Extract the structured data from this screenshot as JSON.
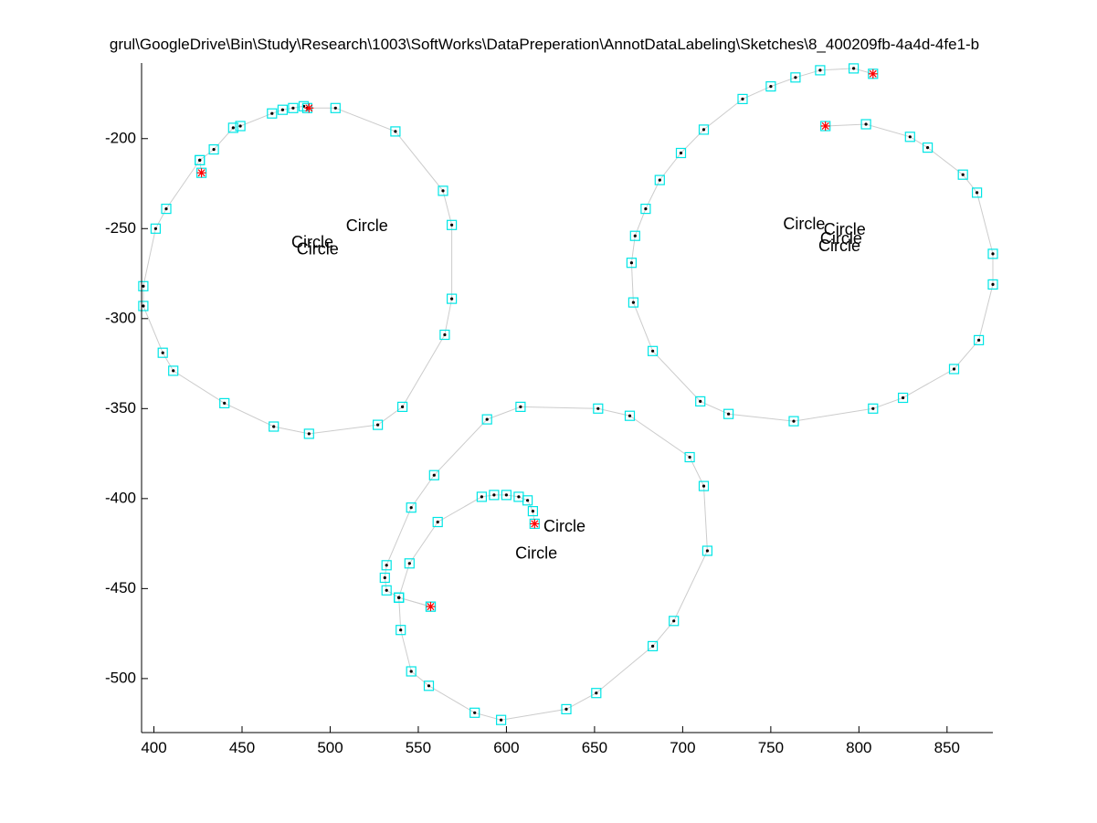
{
  "chart_data": {
    "type": "scatter",
    "title": "grul\\GoogleDrive\\Bin\\Study\\Research\\1003\\SoftWorks\\DataPreperation\\AnnotDataLabeling\\Sketches\\8_400209fb-4a4d-4fe1-b",
    "xlim": [
      393,
      876
    ],
    "ylim": [
      -530,
      -158
    ],
    "x_ticks": [
      400,
      450,
      500,
      550,
      600,
      650,
      700,
      750,
      800,
      850
    ],
    "y_ticks": [
      -200,
      -250,
      -300,
      -350,
      -400,
      -450,
      -500
    ],
    "x_tick_labels": [
      "400",
      "450",
      "500",
      "550",
      "600",
      "650",
      "700",
      "750",
      "800",
      "850"
    ],
    "y_tick_labels": [
      "-200",
      "-250",
      "-300",
      "-350",
      "-400",
      "-450",
      "-500"
    ],
    "grid": false,
    "colors": {
      "line": "#cccccc",
      "marker_box": "#00e5e5",
      "marker_dot": "#000000",
      "endpoint": "#ff0000",
      "axis": "#000000"
    },
    "series": [
      {
        "points": [
          [
            427,
            -219
          ],
          [
            426,
            -212
          ],
          [
            434,
            -206
          ],
          [
            445,
            -194
          ],
          [
            449,
            -193
          ],
          [
            467,
            -186
          ],
          [
            473,
            -184
          ],
          [
            479,
            -183
          ],
          [
            485,
            -182
          ],
          [
            487,
            -183
          ],
          [
            503,
            -183
          ],
          [
            537,
            -196
          ],
          [
            564,
            -229
          ],
          [
            569,
            -248
          ],
          [
            569,
            -289
          ],
          [
            565,
            -309
          ],
          [
            541,
            -349
          ],
          [
            527,
            -359
          ],
          [
            488,
            -364
          ],
          [
            468,
            -360
          ],
          [
            440,
            -347
          ],
          [
            411,
            -329
          ],
          [
            405,
            -319
          ],
          [
            394,
            -293
          ],
          [
            394,
            -282
          ],
          [
            401,
            -250
          ],
          [
            407,
            -239
          ],
          [
            426,
            -212
          ]
        ]
      },
      {
        "points": [
          [
            808,
            -164
          ],
          [
            797,
            -161
          ],
          [
            778,
            -162
          ],
          [
            764,
            -166
          ],
          [
            750,
            -171
          ],
          [
            734,
            -178
          ],
          [
            712,
            -195
          ],
          [
            699,
            -208
          ],
          [
            687,
            -223
          ],
          [
            679,
            -239
          ],
          [
            673,
            -254
          ],
          [
            671,
            -269
          ],
          [
            672,
            -291
          ],
          [
            683,
            -318
          ],
          [
            710,
            -346
          ],
          [
            726,
            -353
          ],
          [
            763,
            -357
          ],
          [
            808,
            -350
          ],
          [
            825,
            -344
          ],
          [
            854,
            -328
          ],
          [
            868,
            -312
          ],
          [
            876,
            -281
          ],
          [
            876,
            -264
          ],
          [
            867,
            -230
          ],
          [
            859,
            -220
          ],
          [
            839,
            -205
          ],
          [
            829,
            -199
          ],
          [
            804,
            -192
          ],
          [
            781,
            -193
          ]
        ]
      },
      {
        "points": [
          [
            616,
            -414
          ],
          [
            615,
            -407
          ],
          [
            612,
            -401
          ],
          [
            607,
            -399
          ],
          [
            600,
            -398
          ],
          [
            593,
            -398
          ],
          [
            586,
            -399
          ],
          [
            561,
            -413
          ],
          [
            545,
            -436
          ],
          [
            539,
            -455
          ],
          [
            557,
            -460
          ]
        ]
      },
      {
        "points": [
          [
            557,
            -460
          ],
          [
            539,
            -455
          ],
          [
            532,
            -451
          ],
          [
            531,
            -444
          ],
          [
            532,
            -437
          ],
          [
            546,
            -405
          ],
          [
            559,
            -387
          ],
          [
            589,
            -356
          ],
          [
            608,
            -349
          ],
          [
            652,
            -350
          ],
          [
            670,
            -354
          ],
          [
            704,
            -377
          ],
          [
            712,
            -393
          ],
          [
            714,
            -429
          ],
          [
            695,
            -468
          ],
          [
            683,
            -482
          ],
          [
            651,
            -508
          ],
          [
            634,
            -517
          ],
          [
            597,
            -523
          ],
          [
            582,
            -519
          ],
          [
            556,
            -504
          ],
          [
            546,
            -496
          ],
          [
            540,
            -473
          ],
          [
            539,
            -455
          ]
        ]
      }
    ],
    "endpoints": [
      [
        427,
        -219
      ],
      [
        488,
        -183
      ],
      [
        808,
        -164
      ],
      [
        781,
        -193
      ],
      [
        616,
        -414
      ],
      [
        557,
        -460
      ]
    ],
    "annotations": [
      {
        "text": "Circle",
        "x": 509,
        "y": -249
      },
      {
        "text": "Circle",
        "x": 478,
        "y": -258
      },
      {
        "text": "Circle",
        "x": 481,
        "y": -262
      },
      {
        "text": "Circle",
        "x": 757,
        "y": -248
      },
      {
        "text": "Circle",
        "x": 780,
        "y": -251
      },
      {
        "text": "Circle",
        "x": 778,
        "y": -256
      },
      {
        "text": "Circle",
        "x": 777,
        "y": -260
      },
      {
        "text": "Circle",
        "x": 621,
        "y": -416
      },
      {
        "text": "Circle",
        "x": 605,
        "y": -431
      }
    ]
  }
}
